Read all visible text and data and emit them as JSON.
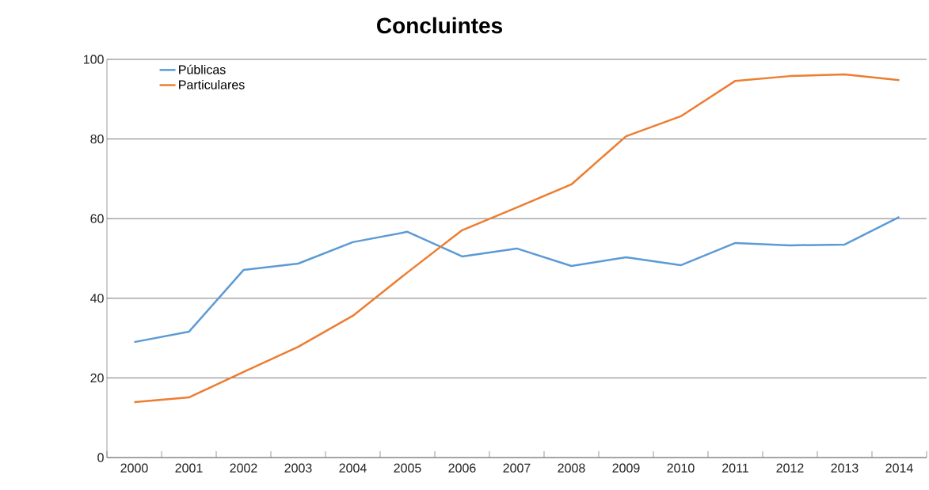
{
  "chart_data": {
    "type": "line",
    "title": "Concluintes",
    "categories": [
      "2000",
      "2001",
      "2002",
      "2003",
      "2004",
      "2005",
      "2006",
      "2007",
      "2008",
      "2009",
      "2010",
      "2011",
      "2012",
      "2013",
      "2014"
    ],
    "series": [
      {
        "name": "Públicas",
        "color": "#5b9bd5",
        "values": [
          29.0,
          31.6,
          47.1,
          48.7,
          54.1,
          56.7,
          50.5,
          52.5,
          48.1,
          50.3,
          48.3,
          53.9,
          53.3,
          53.5,
          60.4
        ]
      },
      {
        "name": "Particulares",
        "color": "#ed7d31",
        "values": [
          13.9,
          15.1,
          21.5,
          27.8,
          35.6,
          46.5,
          57.1,
          62.8,
          68.6,
          80.7,
          85.7,
          94.6,
          95.8,
          96.2,
          94.8
        ]
      }
    ],
    "ylim": [
      0,
      100
    ],
    "yticks": [
      0,
      20,
      40,
      60,
      80,
      100
    ],
    "grid": "y",
    "legend": "top left",
    "marker": "none",
    "line_style": "solid"
  }
}
